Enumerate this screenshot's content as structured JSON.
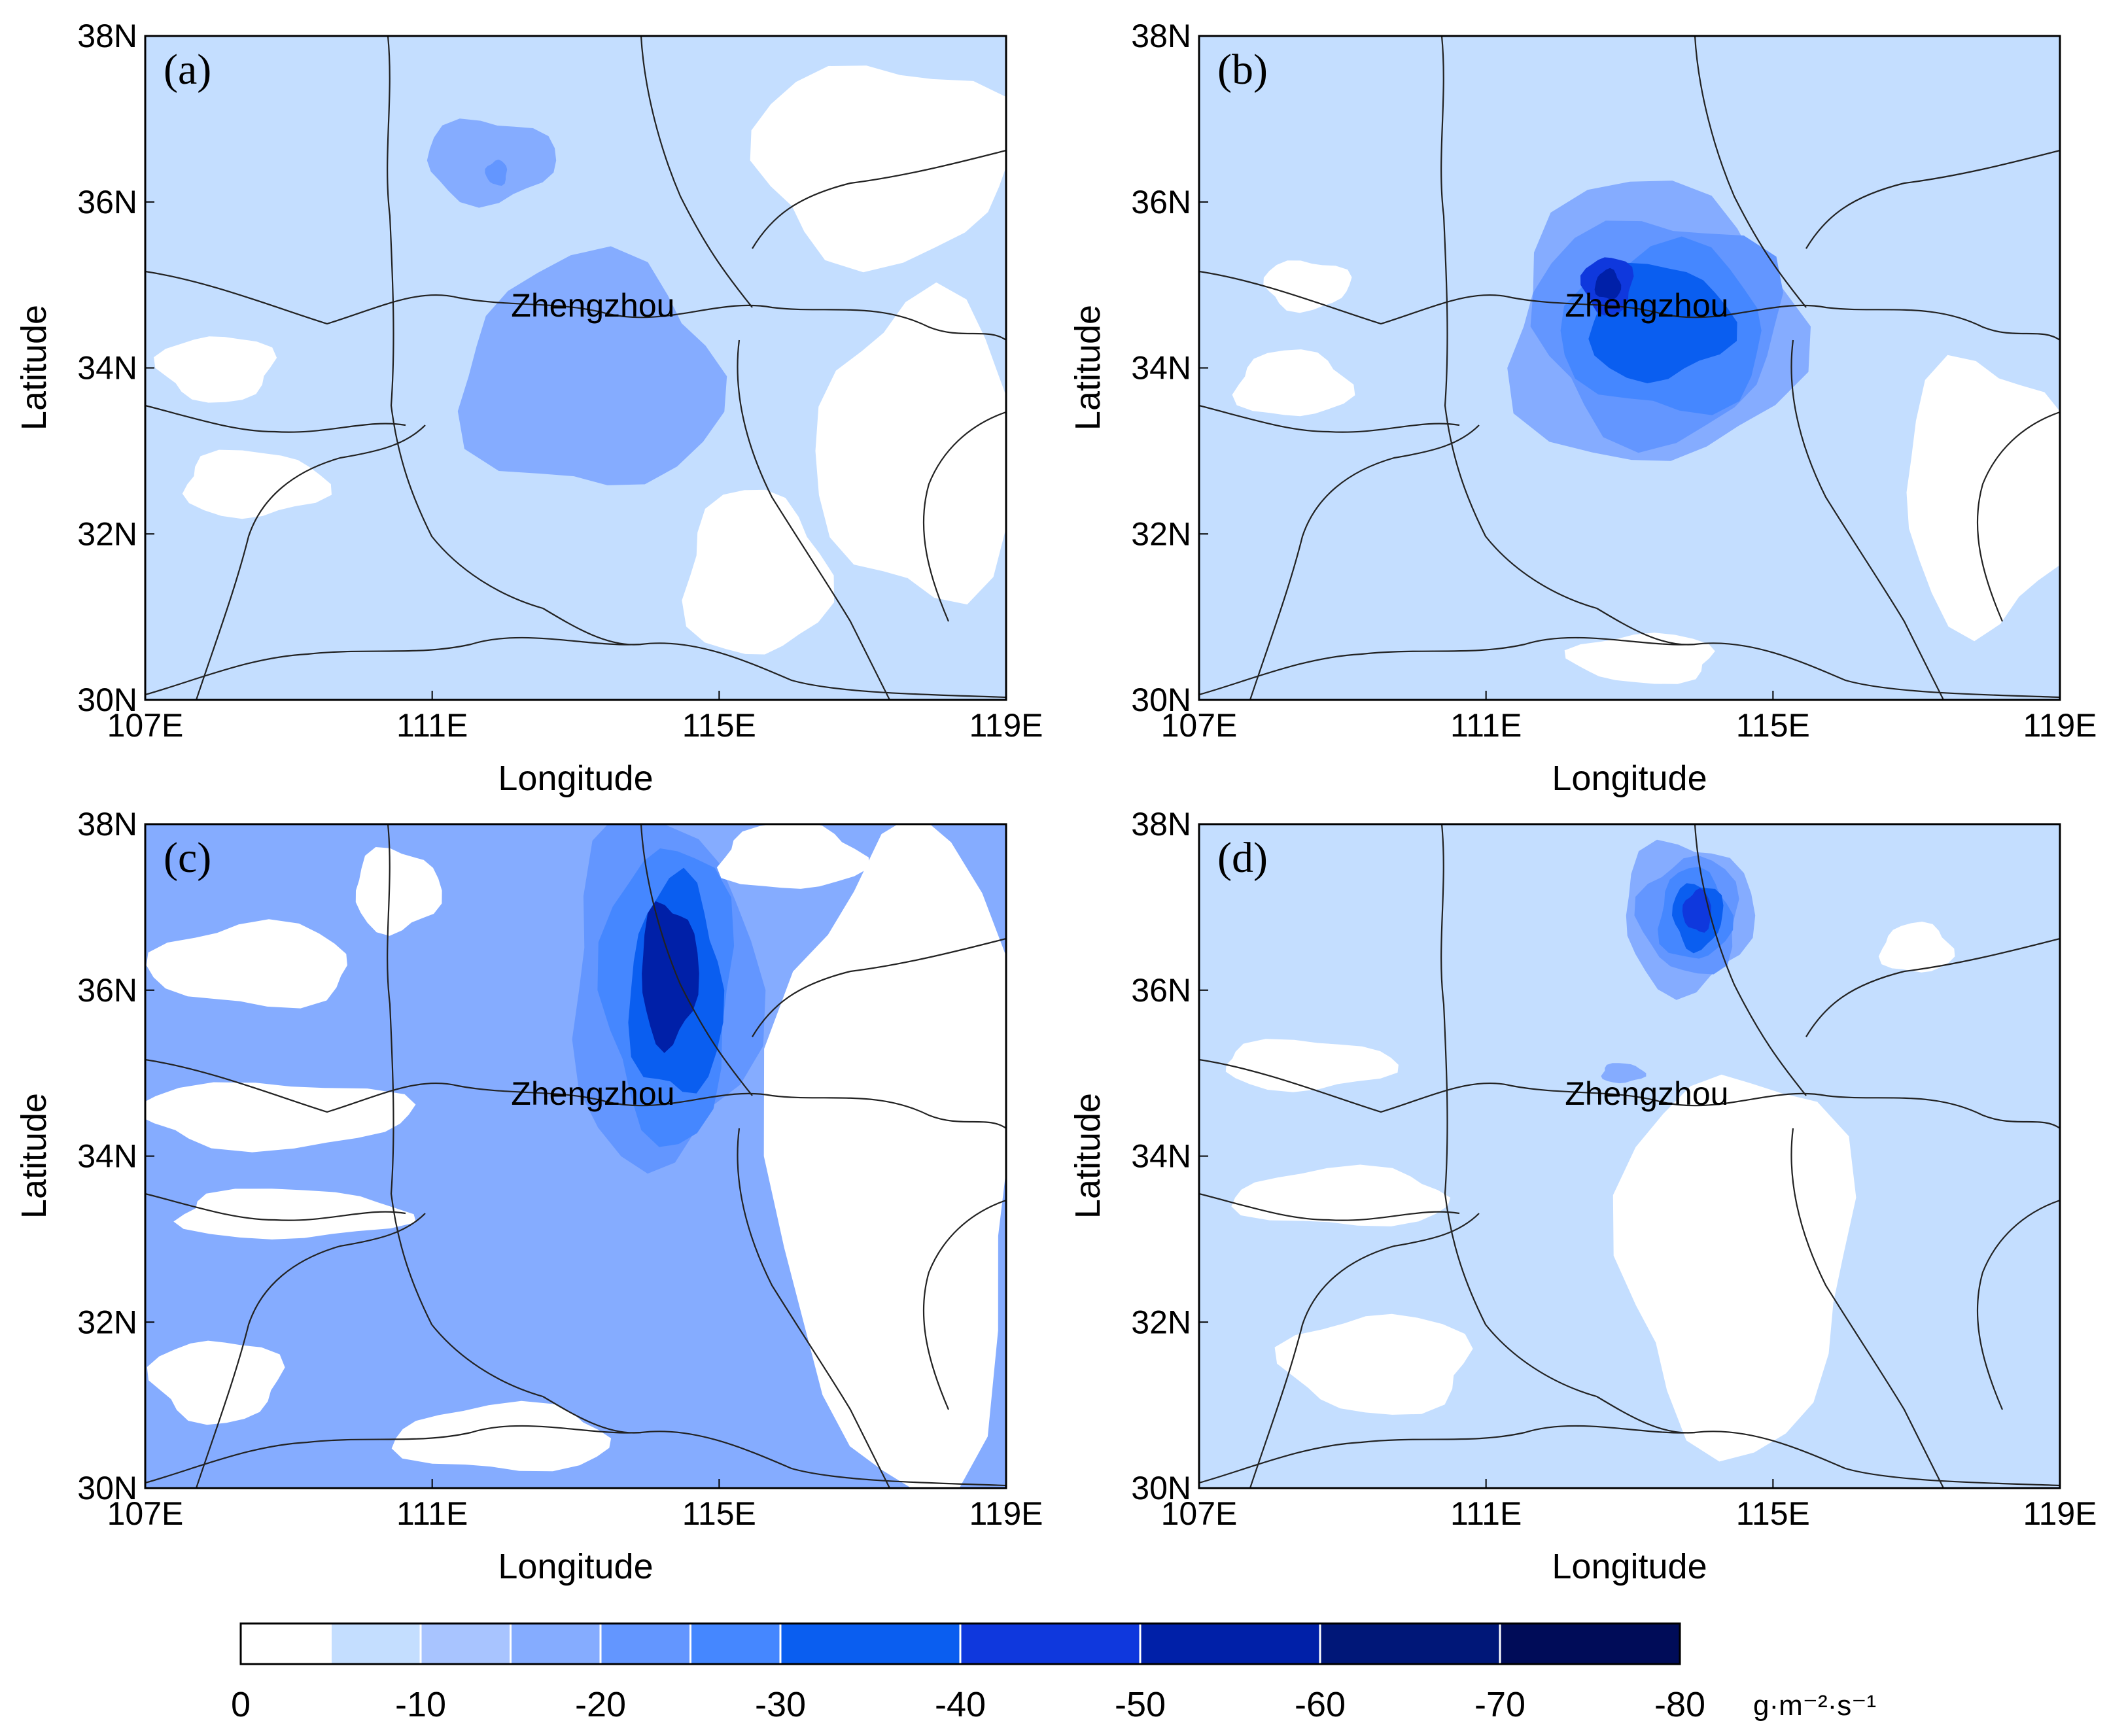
{
  "figure": {
    "axes": {
      "x_ticks": [
        "107E",
        "111E",
        "115E",
        "119E"
      ],
      "y_ticks": [
        "30N",
        "32N",
        "34N",
        "36N",
        "38N"
      ],
      "x_title": "Longitude",
      "y_title": "Latitude",
      "lon_range": [
        107,
        119
      ],
      "lat_range": [
        30,
        38
      ]
    },
    "city": {
      "name": "Zhengzhou",
      "lon": 113.65,
      "lat": 34.76
    },
    "panels": [
      {
        "label": "(a)",
        "background_level": 1,
        "features": [
          {
            "lon": 113.2,
            "lat": 33.9,
            "rx": 1.8,
            "ry": 1.4,
            "level": 3
          },
          {
            "lon": 111.8,
            "lat": 36.5,
            "rx": 0.9,
            "ry": 0.5,
            "level": 3
          },
          {
            "lon": 111.9,
            "lat": 36.35,
            "rx": 0.15,
            "ry": 0.15,
            "level": 4
          },
          {
            "lon": 115.5,
            "lat": 31.5,
            "rx": 1.0,
            "ry": 1.0,
            "level": 0
          },
          {
            "lon": 117.3,
            "lat": 36.5,
            "rx": 1.8,
            "ry": 1.2,
            "level": 0
          },
          {
            "lon": 117.8,
            "lat": 33.0,
            "rx": 1.4,
            "ry": 1.8,
            "level": 0
          },
          {
            "lon": 108.5,
            "lat": 32.6,
            "rx": 1.0,
            "ry": 0.4,
            "level": 0
          },
          {
            "lon": 108.0,
            "lat": 34.0,
            "rx": 0.8,
            "ry": 0.4,
            "level": 0
          }
        ]
      },
      {
        "label": "(b)",
        "background_level": 1,
        "features": [
          {
            "lon": 113.3,
            "lat": 34.5,
            "rx": 2.0,
            "ry": 1.7,
            "level": 3
          },
          {
            "lon": 113.4,
            "lat": 34.5,
            "rx": 1.7,
            "ry": 1.35,
            "level": 4
          },
          {
            "lon": 113.5,
            "lat": 34.45,
            "rx": 1.4,
            "ry": 1.0,
            "level": 5
          },
          {
            "lon": 113.4,
            "lat": 34.55,
            "rx": 1.0,
            "ry": 0.7,
            "level": 6
          },
          {
            "lon": 112.7,
            "lat": 35.0,
            "rx": 0.35,
            "ry": 0.35,
            "level": 7
          },
          {
            "lon": 112.7,
            "lat": 35.0,
            "rx": 0.18,
            "ry": 0.18,
            "level": 8
          },
          {
            "lon": 118.0,
            "lat": 32.5,
            "rx": 1.2,
            "ry": 1.6,
            "level": 0
          },
          {
            "lon": 113.2,
            "lat": 30.5,
            "rx": 1.0,
            "ry": 0.3,
            "level": 0
          },
          {
            "lon": 108.3,
            "lat": 33.8,
            "rx": 0.8,
            "ry": 0.4,
            "level": 0
          },
          {
            "lon": 108.5,
            "lat": 35.0,
            "rx": 0.6,
            "ry": 0.3,
            "level": 0
          }
        ]
      },
      {
        "label": "(c)",
        "background_level": 3,
        "features": [
          {
            "lon": 114.2,
            "lat": 36.0,
            "rx": 1.3,
            "ry": 2.1,
            "level": 4
          },
          {
            "lon": 114.3,
            "lat": 36.0,
            "rx": 0.9,
            "ry": 1.8,
            "level": 5
          },
          {
            "lon": 114.4,
            "lat": 36.0,
            "rx": 0.65,
            "ry": 1.3,
            "level": 6
          },
          {
            "lon": 114.3,
            "lat": 36.2,
            "rx": 0.4,
            "ry": 0.85,
            "level": 8
          },
          {
            "lon": 117.5,
            "lat": 34.0,
            "rx": 1.7,
            "ry": 4.0,
            "level": 0
          },
          {
            "lon": 116.0,
            "lat": 37.6,
            "rx": 1.0,
            "ry": 0.4,
            "level": 0
          },
          {
            "lon": 108.8,
            "lat": 34.5,
            "rx": 1.9,
            "ry": 0.4,
            "level": 0
          },
          {
            "lon": 108.5,
            "lat": 36.3,
            "rx": 1.4,
            "ry": 0.5,
            "level": 0
          },
          {
            "lon": 109.0,
            "lat": 33.3,
            "rx": 1.6,
            "ry": 0.3,
            "level": 0
          },
          {
            "lon": 108.0,
            "lat": 31.3,
            "rx": 0.9,
            "ry": 0.5,
            "level": 0
          },
          {
            "lon": 112.0,
            "lat": 30.6,
            "rx": 1.5,
            "ry": 0.4,
            "level": 0
          },
          {
            "lon": 110.5,
            "lat": 37.2,
            "rx": 0.6,
            "ry": 0.5,
            "level": 0
          }
        ]
      },
      {
        "label": "(d)",
        "background_level": 1,
        "features": [
          {
            "lon": 113.8,
            "lat": 36.9,
            "rx": 0.9,
            "ry": 0.9,
            "level": 3
          },
          {
            "lon": 113.85,
            "lat": 36.9,
            "rx": 0.7,
            "ry": 0.7,
            "level": 4
          },
          {
            "lon": 113.9,
            "lat": 36.9,
            "rx": 0.5,
            "ry": 0.55,
            "level": 5
          },
          {
            "lon": 113.95,
            "lat": 36.9,
            "rx": 0.35,
            "ry": 0.4,
            "level": 6
          },
          {
            "lon": 113.95,
            "lat": 36.95,
            "rx": 0.2,
            "ry": 0.25,
            "level": 7
          },
          {
            "lon": 112.9,
            "lat": 35.0,
            "rx": 0.3,
            "ry": 0.12,
            "level": 3
          },
          {
            "lon": 114.5,
            "lat": 32.8,
            "rx": 1.6,
            "ry": 2.3,
            "level": 0
          },
          {
            "lon": 109.0,
            "lat": 33.5,
            "rx": 1.5,
            "ry": 0.35,
            "level": 0
          },
          {
            "lon": 108.5,
            "lat": 35.1,
            "rx": 1.2,
            "ry": 0.3,
            "level": 0
          },
          {
            "lon": 109.5,
            "lat": 31.5,
            "rx": 1.3,
            "ry": 0.6,
            "level": 0
          },
          {
            "lon": 117.0,
            "lat": 36.5,
            "rx": 0.5,
            "ry": 0.3,
            "level": 0
          }
        ]
      }
    ],
    "colorbar": {
      "labels": [
        "0",
        "-10",
        "-20",
        "-30",
        "-40",
        "-50",
        "-60",
        "-70",
        "-80"
      ],
      "unit": "g·m⁻²·s⁻¹",
      "colors": [
        "#ffffff",
        "#c4deff",
        "#a8c4ff",
        "#85acff",
        "#6396ff",
        "#4587ff",
        "#0a5ef0",
        "#0f38dd",
        "#0020a8",
        "#001778",
        "#000c58",
        "#00052a"
      ],
      "boundaries": [
        0,
        -5,
        -10,
        -15,
        -20,
        -25,
        -30,
        -40,
        -50,
        -60,
        -70,
        -80
      ]
    }
  }
}
